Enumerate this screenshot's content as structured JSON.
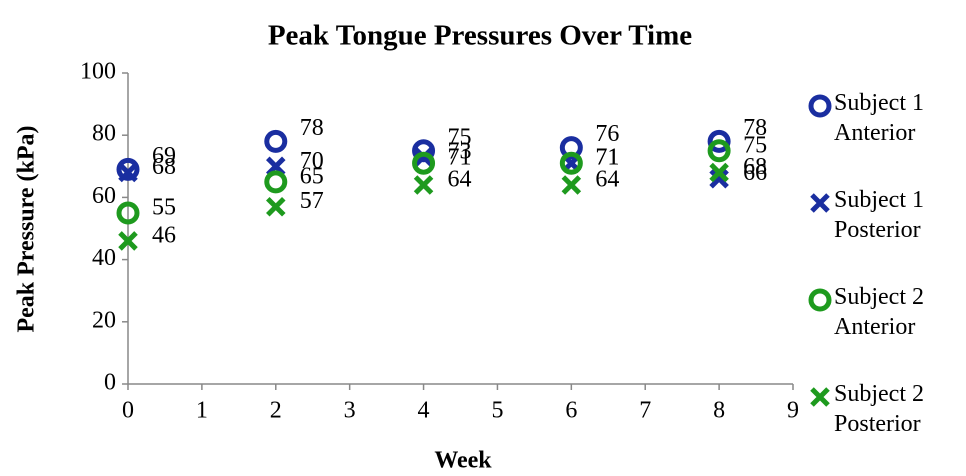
{
  "chart_data": {
    "type": "scatter",
    "title": "Peak Tongue Pressures Over Time",
    "x_label": "Week",
    "y_label": "Peak Pressure (kPa)",
    "x": [
      0,
      2,
      4,
      6,
      8
    ],
    "series": [
      {
        "name": "Subject 1 Anterior",
        "color": "#1a2ea0",
        "marker": "circle",
        "values": [
          69,
          78,
          75,
          76,
          78
        ]
      },
      {
        "name": "Subject 1 Posterior",
        "color": "#1a2ea0",
        "marker": "x",
        "values": [
          68,
          70,
          73,
          71,
          66
        ]
      },
      {
        "name": "Subject 2 Anterior",
        "color": "#1e9a1e",
        "marker": "circle",
        "values": [
          55,
          65,
          71,
          71,
          75
        ]
      },
      {
        "name": "Subject 2 Posterior",
        "color": "#1e9a1e",
        "marker": "x",
        "values": [
          46,
          57,
          64,
          64,
          68
        ]
      }
    ],
    "xlim": [
      0,
      9
    ],
    "xticks": [
      0,
      1,
      2,
      3,
      4,
      5,
      6,
      7,
      8,
      9
    ],
    "ylim": [
      0,
      100
    ],
    "yticks": [
      0,
      20,
      40,
      60,
      80,
      100
    ],
    "grid": false
  }
}
